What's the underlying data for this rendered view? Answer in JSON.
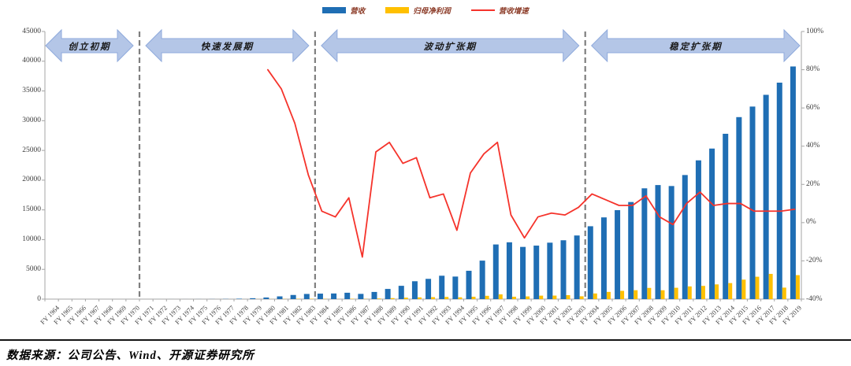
{
  "source": {
    "text": "数据来源：公司公告、Wind、开源证券研究所"
  },
  "phases": [
    {
      "label": "创立初期",
      "start": "FY 1964",
      "end": "FY 1970"
    },
    {
      "label": "快速发展期",
      "start": "FY 1971",
      "end": "FY 1983"
    },
    {
      "label": "波动扩张期",
      "start": "FY 1984",
      "end": "FY 2003"
    },
    {
      "label": "稳定扩张期",
      "start": "FY 2004",
      "end": "FY 2019"
    }
  ],
  "colors": {
    "revenue_blue": "#1f6eb4",
    "profit_yellow": "#ffc000",
    "growth_red": "#f5332b",
    "phase_band_fill": "#b4c6e7",
    "phase_band_border": "#8faadc",
    "divider_gray": "#7f7f7f",
    "axis_gray": "#a6a6a6",
    "legend_text": "#8b3a26"
  },
  "chart_data": {
    "type": "bar",
    "subtype": "dual-axis bar+line combo",
    "grid": false,
    "legend_position": "top-center",
    "categories": [
      "FY 1964",
      "FY 1965",
      "FY 1966",
      "FY 1967",
      "FY 1968",
      "FY 1969",
      "FY 1970",
      "FY 1971",
      "FY 1972",
      "FY 1973",
      "FY 1974",
      "FY 1975",
      "FY 1976",
      "FY 1977",
      "FY 1978",
      "FY 1979",
      "FY 1980",
      "FY 1981",
      "FY 1982",
      "FY 1983",
      "FY 1984",
      "FY 1985",
      "FY 1986",
      "FY 1987",
      "FY 1988",
      "FY 1989",
      "FY 1990",
      "FY 1991",
      "FY 1992",
      "FY 1993",
      "FY 1994",
      "FY 1995",
      "FY 1996",
      "FY 1997",
      "FY 1998",
      "FY 1999",
      "FY 2000",
      "FY 2001",
      "FY 2002",
      "FY 2003",
      "FY 2004",
      "FY 2005",
      "FY 2006",
      "FY 2007",
      "FY 2008",
      "FY 2009",
      "FY 2010",
      "FY 2011",
      "FY 2012",
      "FY 2013",
      "FY 2014",
      "FY 2015",
      "FY 2016",
      "FY 2017",
      "FY 2018",
      "FY 2019"
    ],
    "series": [
      {
        "name": "营收",
        "type": "bar",
        "axis": "left",
        "color": "#1f6eb4",
        "values": [
          0.01,
          0.02,
          0.04,
          0.08,
          0.15,
          0.3,
          0.4,
          0.7,
          2,
          3.2,
          4.8,
          8.3,
          14.1,
          28.7,
          71,
          150,
          270,
          458,
          694,
          867,
          920,
          946,
          1069,
          877,
          1203,
          1711,
          2235,
          3004,
          3405,
          3931,
          3790,
          4761,
          6471,
          9187,
          9553,
          8777,
          8995,
          9489,
          9893,
          10697,
          12253,
          13740,
          14955,
          16326,
          18627,
          19176,
          19014,
          20862,
          23331,
          25313,
          27799,
          30601,
          32376,
          34350,
          36397,
          39117
        ]
      },
      {
        "name": "归母净利润",
        "type": "bar",
        "axis": "left",
        "color": "#ffc000",
        "values": [
          0,
          0,
          0,
          0,
          0,
          0,
          0,
          0,
          0,
          0.1,
          0.2,
          0.4,
          0.6,
          1.9,
          4,
          9.7,
          12.5,
          26,
          49,
          57,
          41,
          10,
          59,
          36,
          102,
          167,
          243,
          287,
          329,
          365,
          299,
          400,
          553,
          796,
          400,
          451,
          579,
          590,
          663,
          474,
          946,
          1212,
          1392,
          1492,
          1883,
          1487,
          1907,
          2133,
          2223,
          2472,
          2693,
          3273,
          3760,
          4240,
          1933,
          4029
        ]
      },
      {
        "name": "营收增速",
        "type": "line",
        "axis": "right",
        "color": "#f5332b",
        "unit": "%",
        "values": [
          null,
          null,
          null,
          null,
          null,
          null,
          null,
          null,
          null,
          null,
          null,
          null,
          null,
          null,
          null,
          null,
          80,
          70,
          52,
          25,
          6,
          3,
          13,
          -18,
          37,
          42,
          31,
          34,
          13,
          15,
          -4,
          26,
          36,
          42,
          4,
          -8,
          3,
          5,
          4,
          8,
          15,
          12,
          9,
          9,
          14,
          3,
          -1,
          10,
          16,
          9,
          10,
          10,
          6,
          6,
          6,
          7
        ]
      }
    ],
    "left_axis": {
      "min": 0,
      "max": 45000,
      "step": 5000,
      "ticks": [
        "0",
        "5000",
        "10000",
        "15000",
        "20000",
        "25000",
        "30000",
        "35000",
        "40000",
        "45000"
      ]
    },
    "right_axis": {
      "min": -40,
      "max": 100,
      "step": 20,
      "ticks": [
        "-40%",
        "-20%",
        "0%",
        "20%",
        "40%",
        "60%",
        "80%",
        "100%"
      ]
    }
  }
}
